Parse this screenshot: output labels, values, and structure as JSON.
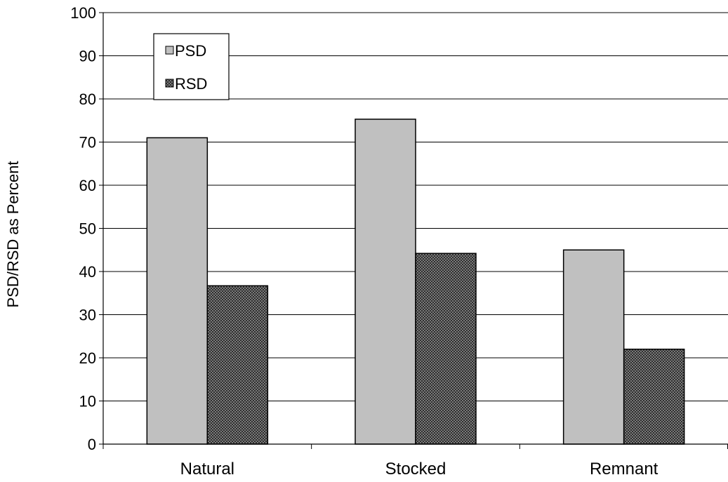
{
  "chart_data": {
    "type": "bar",
    "categories": [
      "Natural",
      "Stocked",
      "Remnant"
    ],
    "series": [
      {
        "name": "PSD",
        "values": [
          71,
          75.3,
          45
        ],
        "color": "#c0c0c0",
        "pattern": "solid"
      },
      {
        "name": "RSD",
        "values": [
          36.7,
          44.2,
          22
        ],
        "color": "#3a3a3a",
        "pattern": "checker"
      }
    ],
    "title": "",
    "xlabel": "",
    "ylabel": "PSD/RSD as Percent",
    "ylim": [
      0,
      100
    ],
    "yticks": [
      "0",
      "10",
      "20",
      "30",
      "40",
      "50",
      "60",
      "70",
      "80",
      "90",
      "100"
    ],
    "grid": true,
    "legend_position": "top-left"
  }
}
